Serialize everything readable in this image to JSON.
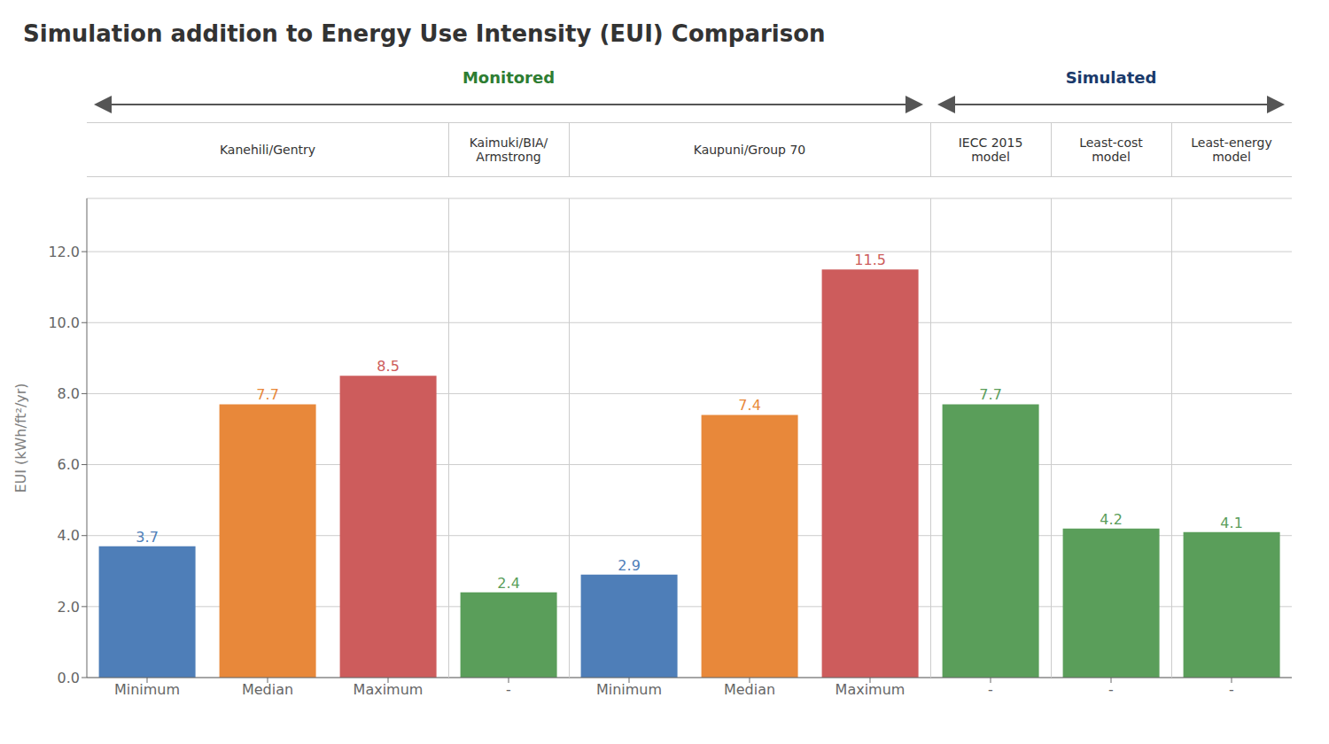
{
  "chart_data": {
    "type": "bar",
    "title": "Simulation addition to Energy Use Intensity (EUI) Comparison",
    "ylabel": "EUI (kWh/ft²/yr)",
    "categories": [
      "Minimum",
      "Median",
      "Maximum",
      "-",
      "Minimum",
      "Median",
      "Maximum",
      "-",
      "-",
      "-"
    ],
    "values": [
      3.7,
      7.7,
      8.5,
      2.4,
      2.9,
      7.4,
      11.5,
      7.7,
      4.2,
      4.1
    ],
    "colors": [
      "#4e7eb8",
      "#e8883a",
      "#cd5c5c",
      "#5a9e5a",
      "#4e7eb8",
      "#e8883a",
      "#cd5c5c",
      "#5a9e5a",
      "#5a9e5a",
      "#5a9e5a"
    ],
    "ylim": [
      0,
      13.5
    ],
    "yticks": [
      {
        "value": 0,
        "label": "0.0"
      },
      {
        "value": 2,
        "label": "2.0"
      },
      {
        "value": 4,
        "label": "4.0"
      },
      {
        "value": 6,
        "label": "6.0"
      },
      {
        "value": 8,
        "label": "8.0"
      },
      {
        "value": 10,
        "label": "10.0"
      },
      {
        "value": 12,
        "label": "12.0"
      }
    ],
    "grid": true,
    "data_labels": true,
    "category_groups": [
      "Kanehili/Gentry",
      "Kanehili/Gentry",
      "Kanehili/Gentry",
      "Kaimuki/BIA/\nArmstrong",
      "Kaupuni/Group 70",
      "Kaupuni/Group 70",
      "Kaupuni/Group 70",
      "IECC 2015\nmodel",
      "Least-cost\nmodel",
      "Least-energy\nmodel"
    ],
    "annotations": [
      {
        "text": "Monitored",
        "color": "#2e7d32",
        "groups": [
          "Kanehili/Gentry",
          "Kaimuki/BIA/\nArmstrong",
          "Kaupuni/Group 70"
        ]
      },
      {
        "text": "Simulated",
        "color": "#1a3a6b",
        "groups": [
          "IECC 2015\nmodel",
          "Least-cost\nmodel",
          "Least-energy\nmodel"
        ]
      }
    ]
  }
}
